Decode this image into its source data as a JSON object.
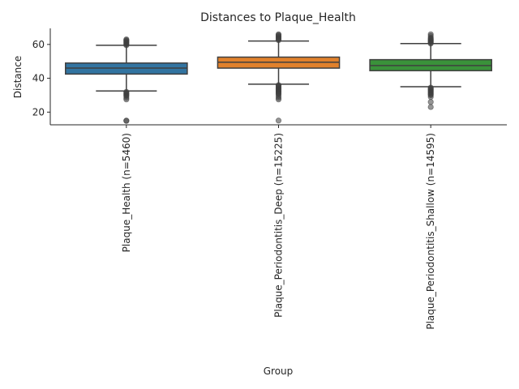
{
  "chart_data": {
    "type": "box",
    "title": "Distances to Plaque_Health",
    "xlabel": "Group",
    "ylabel": "Distance",
    "ylim": [
      12.5,
      69.5
    ],
    "yticks": [
      20,
      40,
      60
    ],
    "grid": false,
    "categories": [
      "Plaque_Health (n=5460)",
      "Plaque_Periodontitis_Deep (n=15225)",
      "Plaque_Periodontitis_Shallow (n=14595)"
    ],
    "colors": [
      "#3274a1",
      "#e1812c",
      "#3a923a"
    ],
    "boxes": [
      {
        "whisker_low": 32.5,
        "q1": 42.5,
        "median": 46,
        "q3": 49,
        "whisker_high": 59.5,
        "outliers_high": [
          59.5,
          60,
          60.5,
          61,
          61.5,
          62,
          62.5,
          63
        ],
        "outliers_low": [
          32,
          31.5,
          31,
          30.5,
          30,
          29.5,
          28.5,
          27.5,
          15,
          14.8
        ]
      },
      {
        "whisker_low": 36.5,
        "q1": 46,
        "median": 49.5,
        "q3": 52.5,
        "whisker_high": 62,
        "outliers_high": [
          62.5,
          63,
          63.5,
          64,
          64.5,
          65,
          65.5,
          66
        ],
        "outliers_low": [
          36,
          35.5,
          35,
          34.5,
          34,
          33.5,
          33,
          32.5,
          32,
          31.5,
          31,
          30.5,
          29.5,
          28.5,
          27.5,
          15
        ]
      },
      {
        "whisker_low": 35,
        "q1": 44.5,
        "median": 47.5,
        "q3": 51,
        "whisker_high": 60.5,
        "outliers_high": [
          60.5,
          61,
          61.5,
          62,
          62.5,
          63,
          63.5,
          64,
          65,
          66
        ],
        "outliers_low": [
          34.5,
          34,
          33.5,
          33,
          32.5,
          32,
          31.5,
          31,
          30.5,
          30,
          29,
          26,
          23
        ]
      }
    ]
  }
}
